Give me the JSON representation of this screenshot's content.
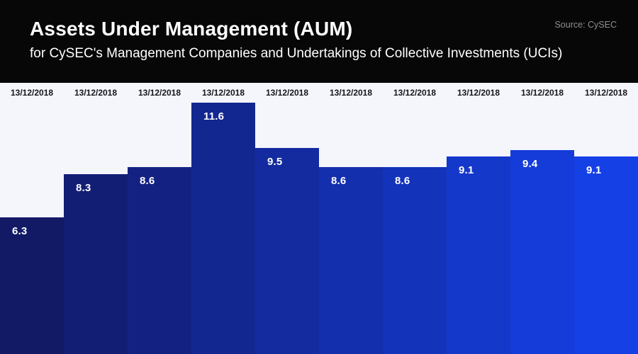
{
  "header": {
    "title": "Assets Under Management (AUM)",
    "subtitle": "for CySEC's Management Companies and Undertakings of Collective Investments (UCIs)",
    "source": "Source: CySEC"
  },
  "chart_data": {
    "type": "bar",
    "title": "Assets Under Management (AUM)",
    "subtitle": "for CySEC's Management Companies and Undertakings of Collective Investments (UCIs)",
    "source": "Source: CySEC",
    "categories": [
      "13/12/2018",
      "13/12/2018",
      "13/12/2018",
      "13/12/2018",
      "13/12/2018",
      "13/12/2018",
      "13/12/2018",
      "13/12/2018",
      "13/12/2018",
      "13/12/2018"
    ],
    "values": [
      6.3,
      8.3,
      8.6,
      11.6,
      9.5,
      8.6,
      8.6,
      9.1,
      9.4,
      9.1
    ],
    "value_labels": [
      "6.3",
      "8.3",
      "8.6",
      "11.6",
      "9.5",
      "8.6",
      "8.6",
      "9.1",
      "9.4",
      "9.1"
    ],
    "bar_colors": [
      "#121a66",
      "#121e74",
      "#132282",
      "#132791",
      "#132b9f",
      "#142fad",
      "#1433bb",
      "#1438ca",
      "#153cd8",
      "#1540e6"
    ],
    "xlabel": "",
    "ylabel": "",
    "ylim": [
      0,
      12.5
    ],
    "grid": false,
    "legend": false,
    "background_color": "#f5f5fc",
    "value_label_color": "#ffffff",
    "category_label_color": "#15151c",
    "header_background": "#070707"
  }
}
